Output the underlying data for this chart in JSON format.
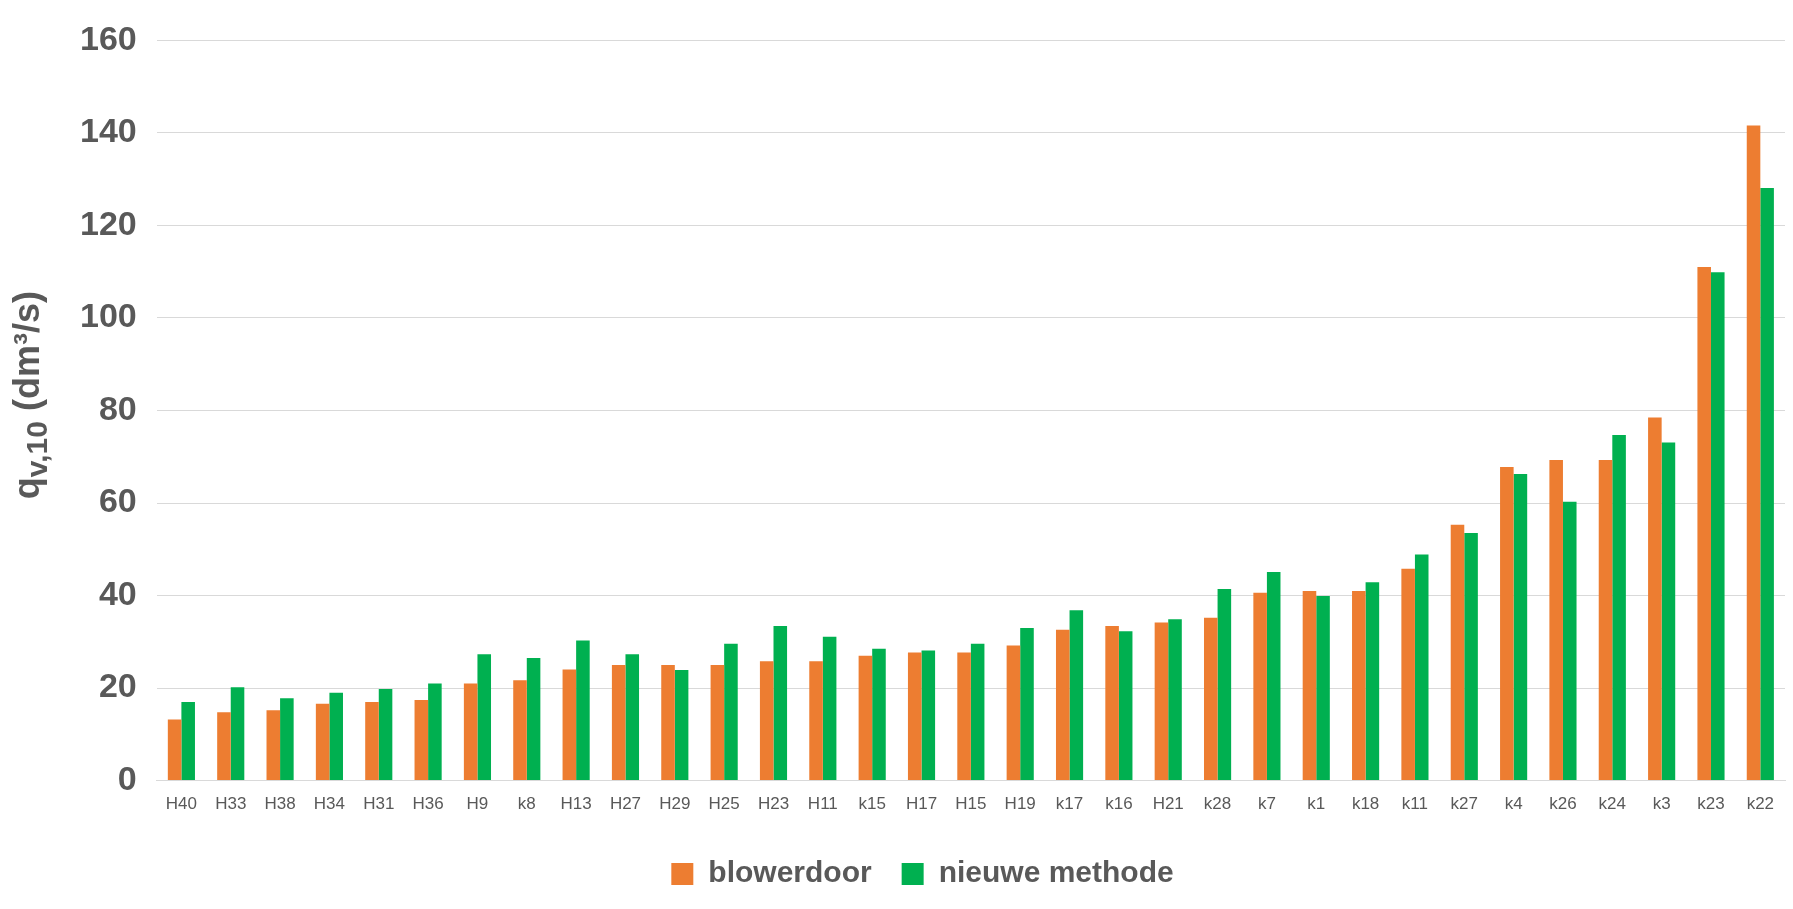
{
  "chart_data": {
    "type": "bar",
    "ylabel": "q$_{v,10}$ (dm³/s)",
    "categories": [
      "H40",
      "H33",
      "H38",
      "H34",
      "H31",
      "H36",
      "H9",
      "k8",
      "H13",
      "H27",
      "H29",
      "H25",
      "H23",
      "H11",
      "k15",
      "H17",
      "H15",
      "H19",
      "k17",
      "k16",
      "H21",
      "k28",
      "k7",
      "k1",
      "k18",
      "k11",
      "k27",
      "k4",
      "k26",
      "k24",
      "k3",
      "k23",
      "k22"
    ],
    "series": [
      {
        "name": "blowerdoor",
        "color": "#ed7d31",
        "values": [
          13.2,
          14.8,
          15.2,
          16.6,
          17,
          17.4,
          21,
          21.7,
          24,
          25,
          25,
          25,
          25.8,
          25.8,
          27,
          27.7,
          27.7,
          29.2,
          32.6,
          33.4,
          34.2,
          35.2,
          40.6,
          41,
          41,
          45.8,
          55.3,
          67.8,
          69.3,
          69.3,
          78.5,
          111,
          141.6
        ]
      },
      {
        "name": "nieuwe methode",
        "color": "#00b050",
        "values": [
          17,
          20.2,
          17.8,
          19,
          19.8,
          21,
          27.3,
          26.5,
          30.3,
          27.3,
          23.9,
          29.6,
          33.4,
          31.1,
          28.5,
          28.1,
          29.6,
          33,
          36.8,
          32.3,
          34.9,
          41.4,
          45.1,
          39.9,
          42.9,
          48.9,
          53.5,
          66.3,
          60.3,
          74.7,
          73.1,
          109.9,
          128.1
        ]
      }
    ],
    "ylim": [
      0,
      160
    ],
    "yticks": [
      0,
      20,
      40,
      60,
      80,
      100,
      120,
      140,
      160
    ],
    "grid": "y",
    "legend": "bottom"
  }
}
